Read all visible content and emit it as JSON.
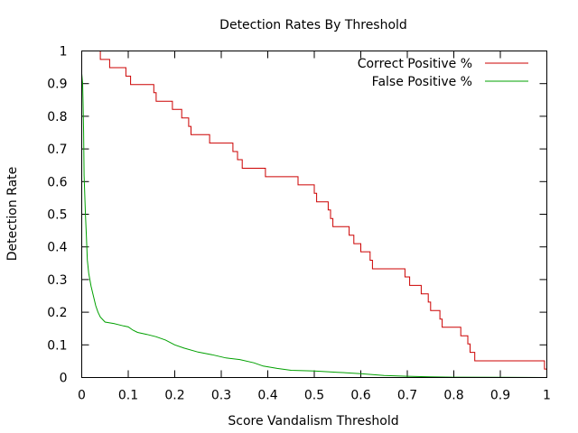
{
  "chart_data": {
    "type": "line",
    "title": "Detection Rates By Threshold",
    "xlabel": "Score Vandalism Threshold",
    "ylabel": "Detection Rate",
    "xlim": [
      0,
      1
    ],
    "ylim": [
      0,
      1
    ],
    "xticks": [
      "0",
      "0.1",
      "0.2",
      "0.3",
      "0.4",
      "0.5",
      "0.6",
      "0.7",
      "0.8",
      "0.9",
      "1"
    ],
    "yticks": [
      "0",
      "0.1",
      "0.2",
      "0.3",
      "0.4",
      "0.5",
      "0.6",
      "0.7",
      "0.8",
      "0.9",
      "1"
    ],
    "grid": false,
    "legend_position": "top-right",
    "series": [
      {
        "name": "Correct Positive %",
        "color": "#cc0000",
        "step": true,
        "points": [
          [
            0.035,
            1.0
          ],
          [
            0.04,
            0.974
          ],
          [
            0.06,
            0.949
          ],
          [
            0.095,
            0.923
          ],
          [
            0.105,
            0.897
          ],
          [
            0.155,
            0.872
          ],
          [
            0.16,
            0.846
          ],
          [
            0.195,
            0.821
          ],
          [
            0.215,
            0.795
          ],
          [
            0.23,
            0.769
          ],
          [
            0.235,
            0.744
          ],
          [
            0.275,
            0.718
          ],
          [
            0.325,
            0.692
          ],
          [
            0.335,
            0.667
          ],
          [
            0.345,
            0.641
          ],
          [
            0.395,
            0.615
          ],
          [
            0.465,
            0.59
          ],
          [
            0.5,
            0.564
          ],
          [
            0.505,
            0.538
          ],
          [
            0.53,
            0.513
          ],
          [
            0.535,
            0.487
          ],
          [
            0.54,
            0.462
          ],
          [
            0.575,
            0.436
          ],
          [
            0.585,
            0.41
          ],
          [
            0.6,
            0.385
          ],
          [
            0.62,
            0.359
          ],
          [
            0.625,
            0.333
          ],
          [
            0.695,
            0.308
          ],
          [
            0.705,
            0.282
          ],
          [
            0.73,
            0.256
          ],
          [
            0.745,
            0.231
          ],
          [
            0.75,
            0.205
          ],
          [
            0.77,
            0.179
          ],
          [
            0.775,
            0.154
          ],
          [
            0.815,
            0.128
          ],
          [
            0.83,
            0.103
          ],
          [
            0.835,
            0.077
          ],
          [
            0.845,
            0.051
          ],
          [
            0.995,
            0.026
          ],
          [
            1.0,
            0.026
          ]
        ]
      },
      {
        "name": "False Positive %",
        "color": "#00a000",
        "step": false,
        "points": [
          [
            0.0,
            0.93
          ],
          [
            0.002,
            0.9
          ],
          [
            0.003,
            0.84
          ],
          [
            0.004,
            0.75
          ],
          [
            0.005,
            0.62
          ],
          [
            0.006,
            0.58
          ],
          [
            0.008,
            0.5
          ],
          [
            0.01,
            0.43
          ],
          [
            0.012,
            0.36
          ],
          [
            0.015,
            0.32
          ],
          [
            0.02,
            0.28
          ],
          [
            0.025,
            0.25
          ],
          [
            0.03,
            0.22
          ],
          [
            0.035,
            0.2
          ],
          [
            0.04,
            0.185
          ],
          [
            0.05,
            0.17
          ],
          [
            0.07,
            0.165
          ],
          [
            0.09,
            0.158
          ],
          [
            0.1,
            0.155
          ],
          [
            0.11,
            0.145
          ],
          [
            0.12,
            0.138
          ],
          [
            0.14,
            0.132
          ],
          [
            0.16,
            0.125
          ],
          [
            0.18,
            0.115
          ],
          [
            0.2,
            0.1
          ],
          [
            0.22,
            0.09
          ],
          [
            0.25,
            0.078
          ],
          [
            0.28,
            0.07
          ],
          [
            0.31,
            0.06
          ],
          [
            0.34,
            0.055
          ],
          [
            0.37,
            0.045
          ],
          [
            0.39,
            0.035
          ],
          [
            0.42,
            0.028
          ],
          [
            0.45,
            0.022
          ],
          [
            0.5,
            0.02
          ],
          [
            0.55,
            0.016
          ],
          [
            0.6,
            0.012
          ],
          [
            0.65,
            0.006
          ],
          [
            0.7,
            0.004
          ],
          [
            0.75,
            0.002
          ],
          [
            0.8,
            0.001
          ],
          [
            0.9,
            0.0005
          ],
          [
            1.0,
            0.0
          ]
        ]
      }
    ]
  }
}
